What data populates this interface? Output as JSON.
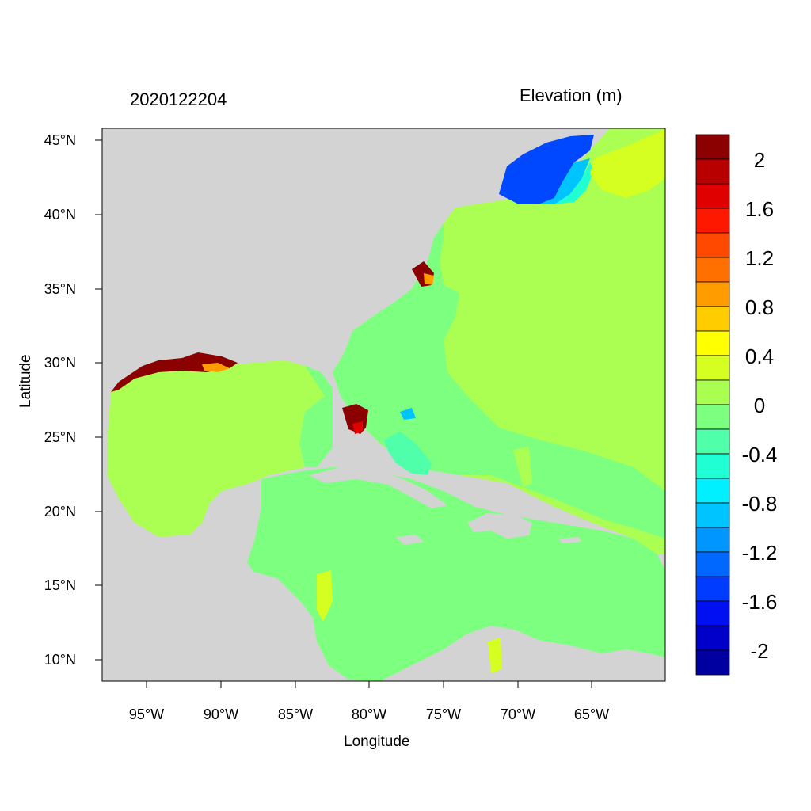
{
  "header": {
    "run_id": "2020122204",
    "title": "Elevation (m)"
  },
  "axes": {
    "xlabel": "Longitude",
    "ylabel": "Latitude",
    "lat_ticks": [
      "45°N",
      "40°N",
      "35°N",
      "30°N",
      "25°N",
      "20°N",
      "15°N",
      "10°N"
    ],
    "lon_ticks": [
      "95°W",
      "90°W",
      "85°W",
      "80°W",
      "75°W",
      "70°W",
      "65°W"
    ],
    "lon_range": [
      -98,
      -60
    ],
    "lat_range": [
      8.5,
      46
    ]
  },
  "colorbar": {
    "labels": [
      "2",
      "1.6",
      "1.2",
      "0.8",
      "0.4",
      "0",
      "-0.4",
      "-0.8",
      "-1.2",
      "-1.6",
      "-2"
    ],
    "colors": [
      "#8b0000",
      "#b80000",
      "#e00000",
      "#ff1800",
      "#ff4800",
      "#ff7000",
      "#ff9c00",
      "#ffcc00",
      "#ffff00",
      "#d4ff20",
      "#a8ff50",
      "#7dff80",
      "#50ffaa",
      "#20ffd4",
      "#00f0ff",
      "#00c4ff",
      "#0096ff",
      "#0068ff",
      "#003cff",
      "#0010f0",
      "#0000c8",
      "#0000a0"
    ]
  },
  "colors": {
    "land": "#d3d3d3",
    "gulf": "#aaff52",
    "atlantic_east": "#aaff52",
    "caribbean": "#7dff80",
    "negative_anomaly": "#0048ff",
    "positive_anomaly": "#8b0000"
  }
}
